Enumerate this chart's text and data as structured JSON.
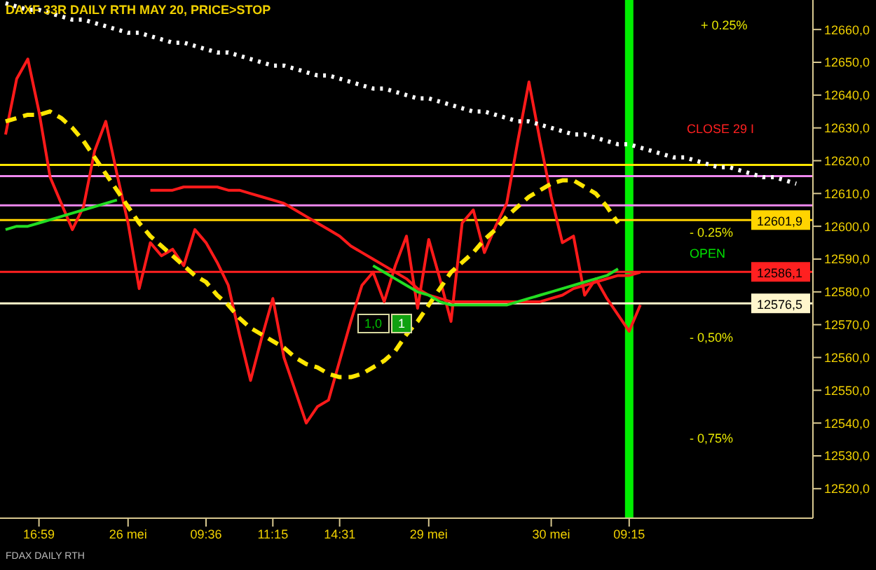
{
  "chart_data": {
    "type": "line",
    "title": "DAXF 33R DAILY RTH MAY 20, PRICE>STOP",
    "marker": "none",
    "categories": [
      null,
      null,
      null,
      "16:59",
      null,
      null,
      null,
      null,
      null,
      null,
      null,
      "26 mei",
      null,
      null,
      null,
      null,
      null,
      null,
      "09:36",
      null,
      null,
      null,
      null,
      null,
      "11:15",
      null,
      null,
      null,
      null,
      null,
      "14:31",
      null,
      null,
      null,
      null,
      null,
      null,
      null,
      "29 mei",
      null,
      null,
      null,
      null,
      null,
      null,
      null,
      null,
      null,
      null,
      "30 mei",
      null,
      null,
      null,
      null,
      null,
      null,
      "09:15",
      null,
      null,
      null,
      null,
      null,
      null,
      null,
      null,
      null,
      null,
      null,
      null,
      null,
      null,
      null,
      null
    ],
    "ylim": [
      12511,
      12669
    ],
    "yticks": [
      {
        "value": 12520,
        "label": "12520,0"
      },
      {
        "value": 12530,
        "label": "12530,0"
      },
      {
        "value": 12540,
        "label": "12540,0"
      },
      {
        "value": 12550,
        "label": "12550,0"
      },
      {
        "value": 12560,
        "label": "12560,0"
      },
      {
        "value": 12570,
        "label": "12570,0"
      },
      {
        "value": 12580,
        "label": "12580,0"
      },
      {
        "value": 12590,
        "label": "12590,0"
      },
      {
        "value": 12600,
        "label": "12600,0"
      },
      {
        "value": 12610,
        "label": "12610,0"
      },
      {
        "value": 12620,
        "label": "12620,0"
      },
      {
        "value": 12630,
        "label": "12630,0"
      },
      {
        "value": 12640,
        "label": "12640,0"
      },
      {
        "value": 12650,
        "label": "12650,0"
      },
      {
        "value": 12660,
        "label": "12660,0"
      }
    ],
    "series": [
      {
        "color": "#ff1a1a",
        "values": [
          12628,
          12645,
          12651,
          12635,
          12615,
          12607,
          12599,
          12606,
          12623,
          12632,
          12616,
          12601,
          12581,
          12595,
          12591,
          12593,
          12588,
          12599,
          12595,
          12589,
          12582,
          12567,
          12553,
          12566,
          12578,
          12560,
          12550,
          12540,
          12545,
          12547,
          12559,
          12571,
          12582,
          12586,
          12577,
          12588,
          12597,
          12575,
          12596,
          12584,
          12571,
          12601,
          12605,
          12592,
          12600,
          12607,
          12626,
          12644,
          12626,
          12609,
          12595,
          12597,
          12579,
          12584,
          12578,
          12573,
          12568,
          12576,
          null,
          null,
          null,
          null,
          null,
          null,
          null,
          null,
          null,
          null,
          null,
          null,
          null,
          null,
          null
        ]
      },
      {
        "color": "#ffe600",
        "line_style": "dashed",
        "values": [
          12632,
          12633,
          12634,
          12634,
          12635,
          12633,
          12630,
          12626,
          12621,
          12616,
          12611,
          12606,
          12601,
          12597,
          12594,
          12591,
          12588,
          12585,
          12583,
          12579,
          12576,
          12572,
          12569,
          12567,
          12565,
          12563,
          12560,
          12558,
          12557,
          12555,
          12554,
          12554,
          12555,
          12557,
          12559,
          12562,
          12567,
          12571,
          12576,
          12581,
          12586,
          12589,
          12592,
          12596,
          12599,
          12603,
          12606,
          12609,
          12611,
          12613,
          12614,
          12614,
          12612,
          12610,
          12606,
          12601,
          null,
          null,
          null,
          null,
          null,
          null,
          null,
          null,
          null,
          null,
          null,
          null,
          null,
          null,
          null,
          null,
          null
        ]
      },
      {
        "color": "#ff1a1a",
        "values": [
          null,
          null,
          null,
          null,
          null,
          null,
          null,
          null,
          null,
          null,
          null,
          null,
          null,
          12611,
          12611,
          12611,
          12612,
          12612,
          12612,
          12612,
          12611,
          12611,
          12610,
          12609,
          12608,
          12607,
          12605,
          12603,
          12601,
          12599,
          12597,
          12594,
          12592,
          12590,
          12588,
          12586,
          12584,
          12581,
          12579,
          12578,
          12577,
          12577,
          12577,
          12577,
          12577,
          12577,
          12577,
          12577,
          12577,
          12578,
          12579,
          12581,
          12582,
          12583,
          12584,
          12585,
          12585,
          12586,
          null,
          null,
          null,
          null,
          null,
          null,
          null,
          null,
          null,
          null,
          null,
          null,
          null,
          null,
          null
        ]
      },
      {
        "color": "#22dd22",
        "values": [
          12599,
          12600,
          12600,
          12601,
          12602,
          12603,
          12604,
          12605,
          12606,
          12607,
          12608,
          null,
          null,
          null,
          null,
          null,
          null,
          null,
          null,
          null,
          null,
          null,
          null,
          null,
          null,
          null,
          null,
          null,
          null,
          null,
          null,
          null,
          null,
          12588,
          12586,
          12584,
          12582,
          12580,
          12579,
          12577,
          12576,
          12576,
          12576,
          12576,
          12576,
          12576,
          12577,
          12578,
          12579,
          12580,
          12581,
          12582,
          12583,
          12584,
          12585,
          12587,
          null,
          null,
          null,
          null,
          null,
          null,
          null,
          null,
          null,
          null,
          null,
          null,
          null,
          null,
          null,
          null,
          null
        ]
      },
      {
        "color": "#ffffff",
        "line_style": "dotted",
        "values": [
          12668,
          12667,
          12666,
          12666,
          12665,
          12664,
          12663,
          12663,
          12662,
          12661,
          12660,
          12659,
          12659,
          12658,
          12657,
          12656,
          12656,
          12655,
          12654,
          12653,
          12653,
          12652,
          12651,
          12650,
          12649,
          12649,
          12648,
          12647,
          12646,
          12646,
          12645,
          12644,
          12643,
          12642,
          12642,
          12641,
          12640,
          12639,
          12639,
          12638,
          12637,
          12636,
          12635,
          12635,
          12634,
          12633,
          12632,
          12632,
          12631,
          12630,
          12629,
          12628,
          12628,
          12627,
          12626,
          12625,
          12625,
          12624,
          12623,
          12622,
          12621,
          12621,
          12620,
          12619,
          12618,
          12618,
          12617,
          12616,
          12615,
          12615,
          12614,
          12613,
          null
        ]
      }
    ],
    "ref_lines": [
      {
        "axis": "x",
        "value": "09:15",
        "color": "#00ee00"
      },
      {
        "axis": "y",
        "value": 12618.7,
        "color": "#ffe600"
      },
      {
        "axis": "y",
        "value": 12615.3,
        "color": "#ee88ee"
      },
      {
        "axis": "y",
        "value": 12606.4,
        "color": "#ee88ee"
      },
      {
        "axis": "y",
        "value": 12601.9,
        "label": "12601,9",
        "color": "#ffd400"
      },
      {
        "axis": "y",
        "value": 12586.1,
        "label": "12586,1",
        "color": "#ff2020"
      },
      {
        "axis": "y",
        "value": 12576.5,
        "label": "12576,5",
        "color": "#fff6cc"
      }
    ],
    "annotations": [
      "+ 0.25%",
      "CLOSE 29 I",
      "- 0.25%",
      "OPEN",
      "- 0,50%",
      "- 0,75%",
      "1,0",
      "1",
      "FDAX DAILY RTH"
    ]
  }
}
